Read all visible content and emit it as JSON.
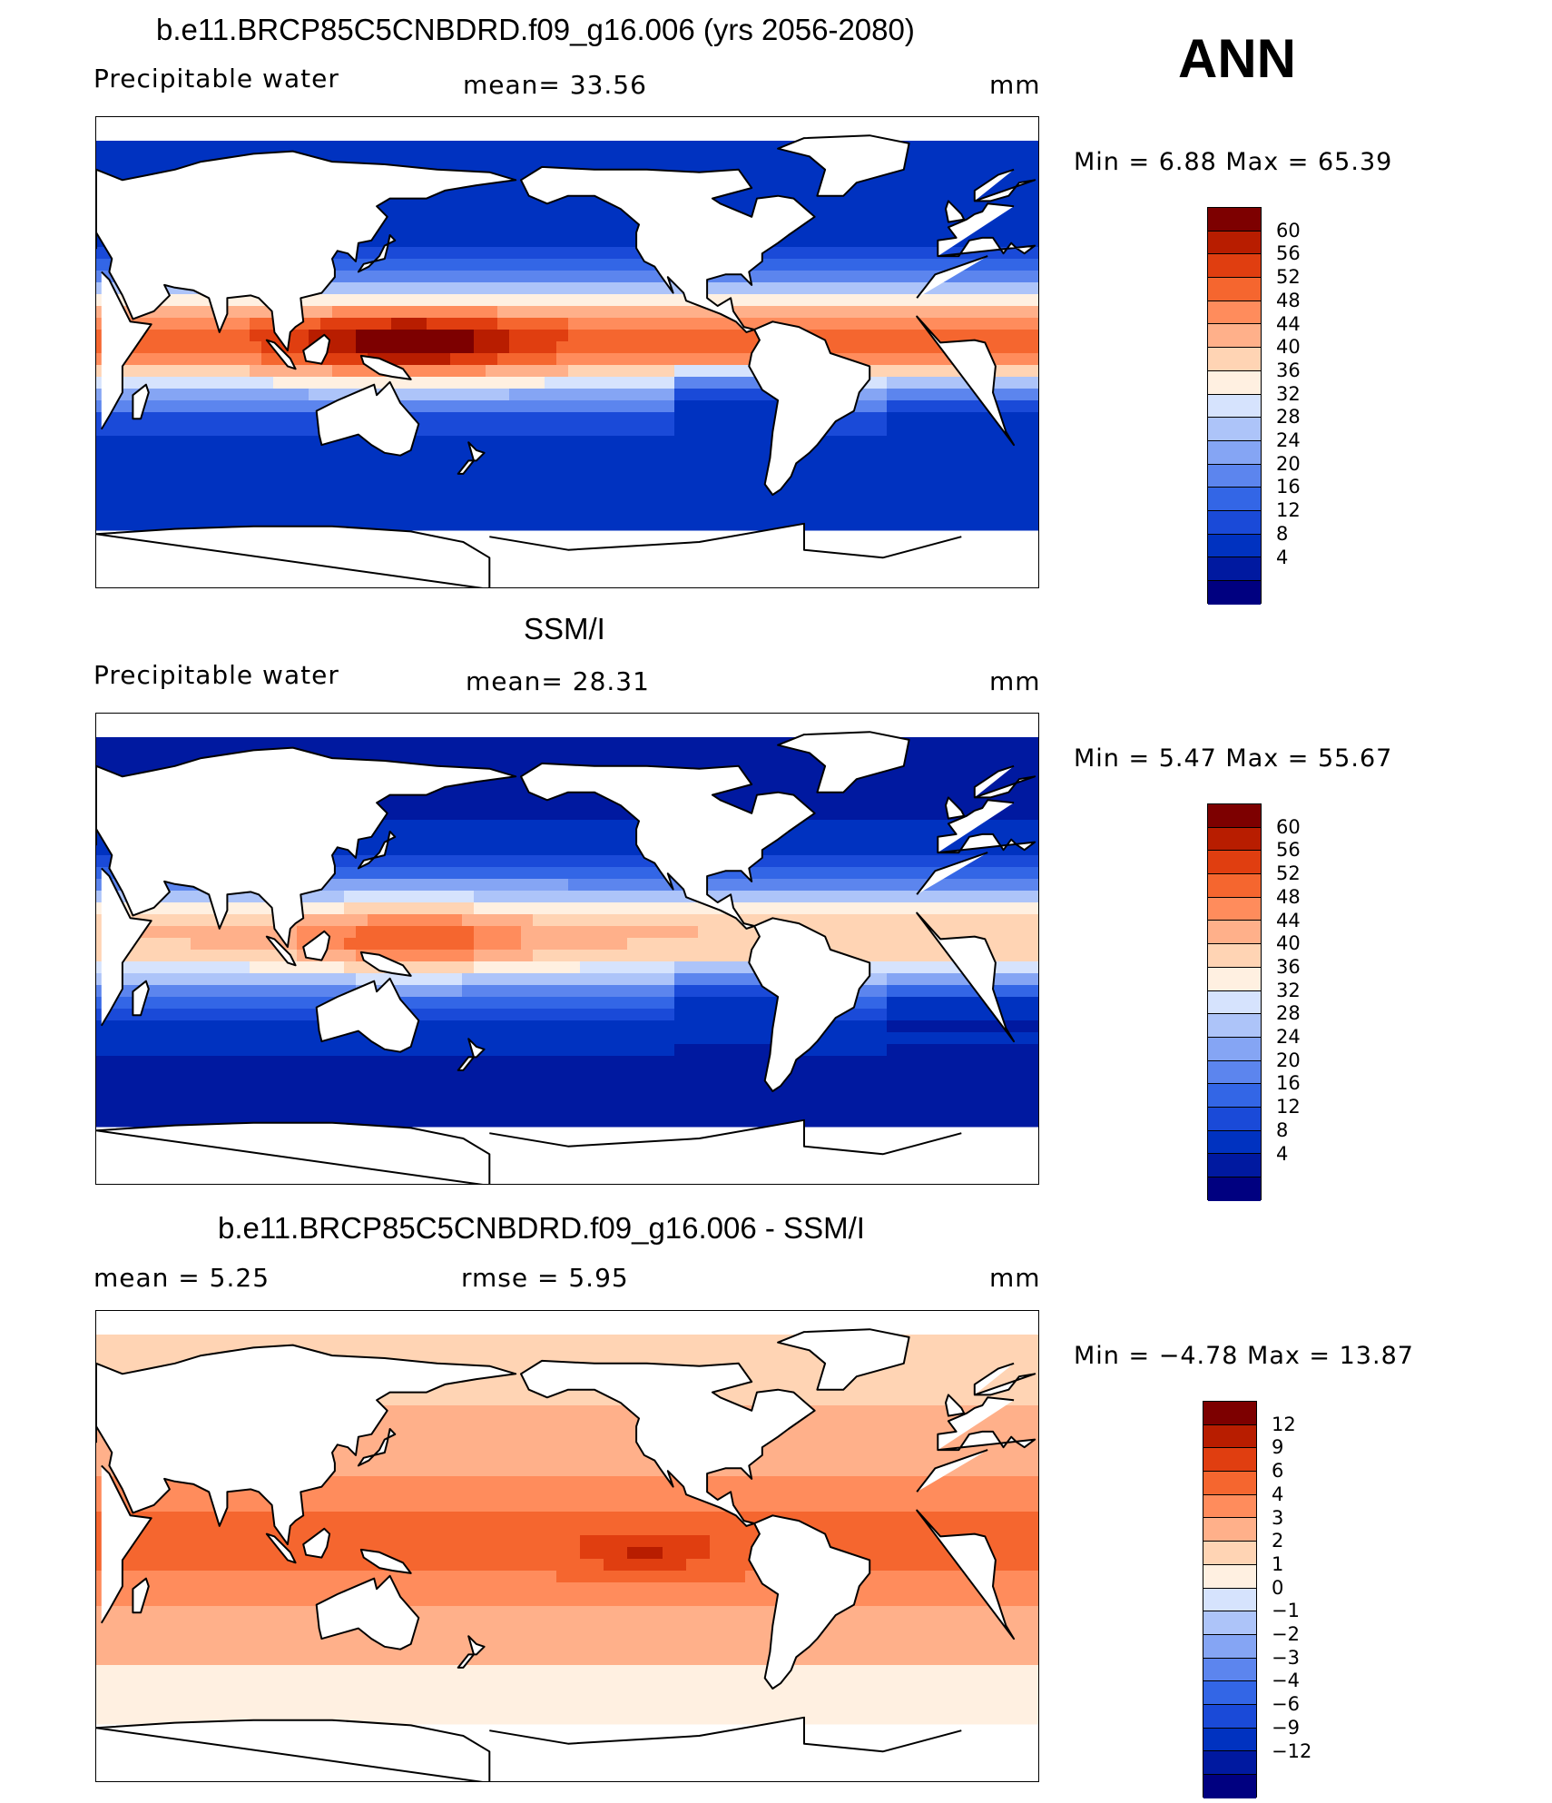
{
  "season": "ANN",
  "palette_pw": [
    "#000080",
    "#0019a0",
    "#0032c0",
    "#1a4ad8",
    "#3366e6",
    "#5c85ee",
    "#85a5f4",
    "#adc4f9",
    "#d6e3fd",
    "#fff0e1",
    "#ffd4b4",
    "#ffb08a",
    "#ff8c5c",
    "#f5662f",
    "#e03e10",
    "#b81d00",
    "#7d0000"
  ],
  "palette_diff": [
    "#000080",
    "#0019a0",
    "#0032c0",
    "#1a4ad8",
    "#3366e6",
    "#5c85ee",
    "#85a5f4",
    "#adc4f9",
    "#d6e3fd",
    "#fff0e1",
    "#ffd4b4",
    "#ffb08a",
    "#ff8c5c",
    "#f5662f",
    "#e03e10",
    "#b81d00",
    "#7d0000"
  ],
  "panels": [
    {
      "title": "b.e11.BRCP85C5CNBDRD.f09_g16.006 (yrs 2056-2080)",
      "left_label": "Precipitable water",
      "center_label": "mean=   33.56",
      "units": "mm",
      "minmax": "Min =     6.88  Max =    65.39",
      "colorbar_labels": [
        "60",
        "56",
        "52",
        "48",
        "44",
        "40",
        "36",
        "32",
        "28",
        "24",
        "20",
        "16",
        "12",
        "8",
        "4"
      ]
    },
    {
      "title": "SSM/I",
      "left_label": "Precipitable water",
      "center_label": "mean=   28.31",
      "units": "mm",
      "minmax": "Min =     5.47  Max =    55.67",
      "colorbar_labels": [
        "60",
        "56",
        "52",
        "48",
        "44",
        "40",
        "36",
        "32",
        "28",
        "24",
        "20",
        "16",
        "12",
        "8",
        "4"
      ]
    },
    {
      "title": "b.e11.BRCP85C5CNBDRD.f09_g16.006 - SSM/I",
      "left_label": "mean =      5.25",
      "center_label": "rmse =      5.95",
      "units": "mm",
      "minmax": "Min =   −4.78  Max =    13.87",
      "colorbar_labels": [
        "12",
        "9",
        "6",
        "4",
        "3",
        "2",
        "1",
        "0",
        "−1",
        "−2",
        "−3",
        "−4",
        "−6",
        "−9",
        "−12"
      ]
    }
  ]
}
